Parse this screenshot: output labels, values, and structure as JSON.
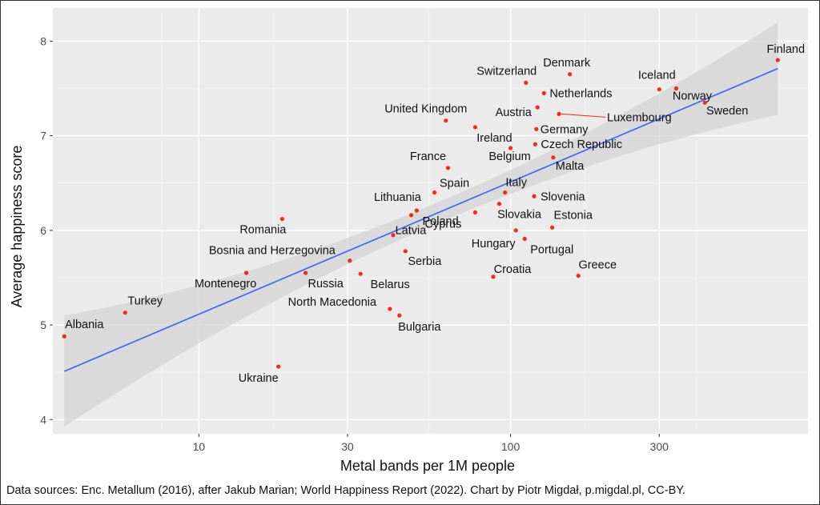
{
  "chart_data": {
    "type": "scatter",
    "xlabel": "Metal bands per 1M people",
    "ylabel": "Average happiness score",
    "xscale": "log10",
    "xlim": [
      3.4,
      900
    ],
    "ylim": [
      3.85,
      8.35
    ],
    "xticks": [
      10,
      30,
      100,
      300
    ],
    "xtick_labels": [
      "10",
      "30",
      "100",
      "300"
    ],
    "yticks": [
      4,
      5,
      6,
      7,
      8
    ],
    "ytick_labels": [
      "4",
      "5",
      "6",
      "7",
      "8"
    ],
    "grid": true,
    "legend": "none",
    "caption": "Data sources: Enc. Metallum (2016), after Jakub Marian; World Happiness Report (2022). Chart by Piotr Migdał, p.migdal.pl, CC-BY.",
    "points": [
      {
        "name": "Finland",
        "x": 720,
        "y": 7.8
      },
      {
        "name": "Denmark",
        "x": 155,
        "y": 7.65
      },
      {
        "name": "Iceland",
        "x": 300,
        "y": 7.49
      },
      {
        "name": "Norway",
        "x": 340,
        "y": 7.5
      },
      {
        "name": "Sweden",
        "x": 420,
        "y": 7.35
      },
      {
        "name": "Switzerland",
        "x": 112,
        "y": 7.56
      },
      {
        "name": "Netherlands",
        "x": 128,
        "y": 7.45
      },
      {
        "name": "Austria",
        "x": 122,
        "y": 7.3
      },
      {
        "name": "Luxembourg",
        "x": 143,
        "y": 7.23
      },
      {
        "name": "United Kingdom",
        "x": 62,
        "y": 7.16
      },
      {
        "name": "Ireland",
        "x": 77,
        "y": 7.09
      },
      {
        "name": "Germany",
        "x": 121,
        "y": 7.07
      },
      {
        "name": "Czech Republic",
        "x": 120,
        "y": 6.91
      },
      {
        "name": "Belgium",
        "x": 100,
        "y": 6.87
      },
      {
        "name": "Malta",
        "x": 137,
        "y": 6.77
      },
      {
        "name": "France",
        "x": 63,
        "y": 6.66
      },
      {
        "name": "Spain",
        "x": 57,
        "y": 6.4
      },
      {
        "name": "Italy",
        "x": 96,
        "y": 6.4
      },
      {
        "name": "Slovenia",
        "x": 119,
        "y": 6.36
      },
      {
        "name": "Lithuania",
        "x": 50,
        "y": 6.21
      },
      {
        "name": "Poland",
        "x": 48,
        "y": 6.16
      },
      {
        "name": "Slovakia",
        "x": 92,
        "y": 6.28
      },
      {
        "name": "Romania",
        "x": 18.5,
        "y": 6.12
      },
      {
        "name": "Cyprus",
        "x": 77,
        "y": 6.19
      },
      {
        "name": "Estonia",
        "x": 136,
        "y": 6.03
      },
      {
        "name": "Hungary",
        "x": 104,
        "y": 6.0
      },
      {
        "name": "Latvia",
        "x": 42,
        "y": 5.95
      },
      {
        "name": "Portugal",
        "x": 111,
        "y": 5.91
      },
      {
        "name": "Serbia",
        "x": 46,
        "y": 5.78
      },
      {
        "name": "Bosnia and Herzegovina",
        "x": 30.5,
        "y": 5.68
      },
      {
        "name": "Montenegro",
        "x": 14.2,
        "y": 5.55
      },
      {
        "name": "Russia",
        "x": 22,
        "y": 5.55
      },
      {
        "name": "Belarus",
        "x": 33,
        "y": 5.54
      },
      {
        "name": "Croatia",
        "x": 88,
        "y": 5.51
      },
      {
        "name": "Greece",
        "x": 165,
        "y": 5.52
      },
      {
        "name": "North Macedonia",
        "x": 41,
        "y": 5.17
      },
      {
        "name": "Bulgaria",
        "x": 44,
        "y": 5.1
      },
      {
        "name": "Turkey",
        "x": 5.8,
        "y": 5.13
      },
      {
        "name": "Albania",
        "x": 3.7,
        "y": 4.88
      },
      {
        "name": "Ukraine",
        "x": 18,
        "y": 4.56
      }
    ],
    "trend": {
      "color": "#3366FF",
      "from": [
        3.7,
        4.51
      ],
      "to": [
        720,
        7.71
      ]
    },
    "colors": {
      "point": "#F8271A",
      "panel": "#EBEBEB",
      "grid": "#FFFFFF",
      "band": "#D4D4D4"
    }
  }
}
